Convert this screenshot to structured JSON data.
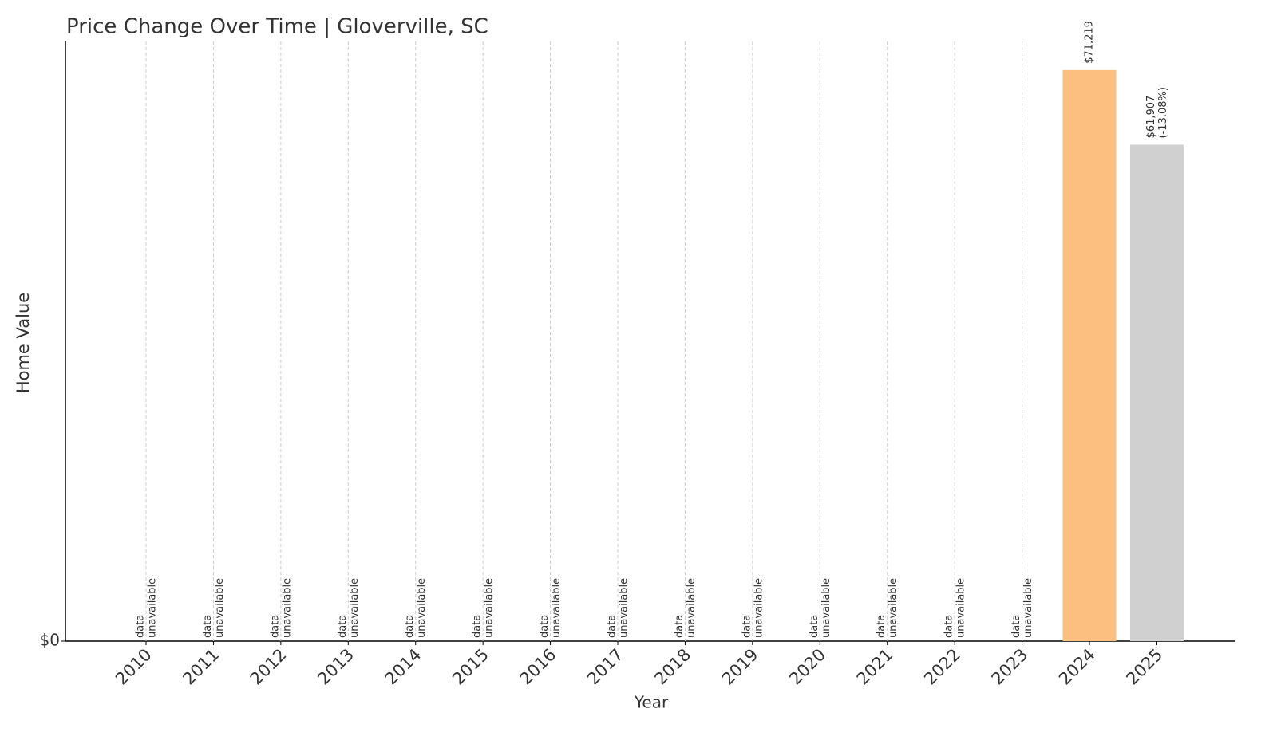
{
  "chart_data": {
    "type": "bar",
    "title": "Price Change Over Time | Gloverville, SC",
    "x_label": "Year",
    "y_label": "Home Value",
    "categories": [
      "2010",
      "2011",
      "2012",
      "2013",
      "2014",
      "2015",
      "2016",
      "2017",
      "2018",
      "2019",
      "2020",
      "2021",
      "2022",
      "2023",
      "2024",
      "2025"
    ],
    "values": [
      null,
      null,
      null,
      null,
      null,
      null,
      null,
      null,
      null,
      null,
      null,
      null,
      null,
      null,
      71219,
      61907
    ],
    "value_labels": [
      "data\nunavailable",
      "data\nunavailable",
      "data\nunavailable",
      "data\nunavailable",
      "data\nunavailable",
      "data\nunavailable",
      "data\nunavailable",
      "data\nunavailable",
      "data\nunavailable",
      "data\nunavailable",
      "data\nunavailable",
      "data\nunavailable",
      "data\nunavailable",
      "data\nunavailable",
      "$71,219",
      "$61,907\n(-13.08%)"
    ],
    "colors": [
      null,
      null,
      null,
      null,
      null,
      null,
      null,
      null,
      null,
      null,
      null,
      null,
      null,
      null,
      "#fdbf7f",
      "#d0d0d0"
    ],
    "ylim": [
      0,
      74780
    ],
    "yticks": [
      {
        "value": 0,
        "label": "$0"
      }
    ],
    "grid": false
  }
}
